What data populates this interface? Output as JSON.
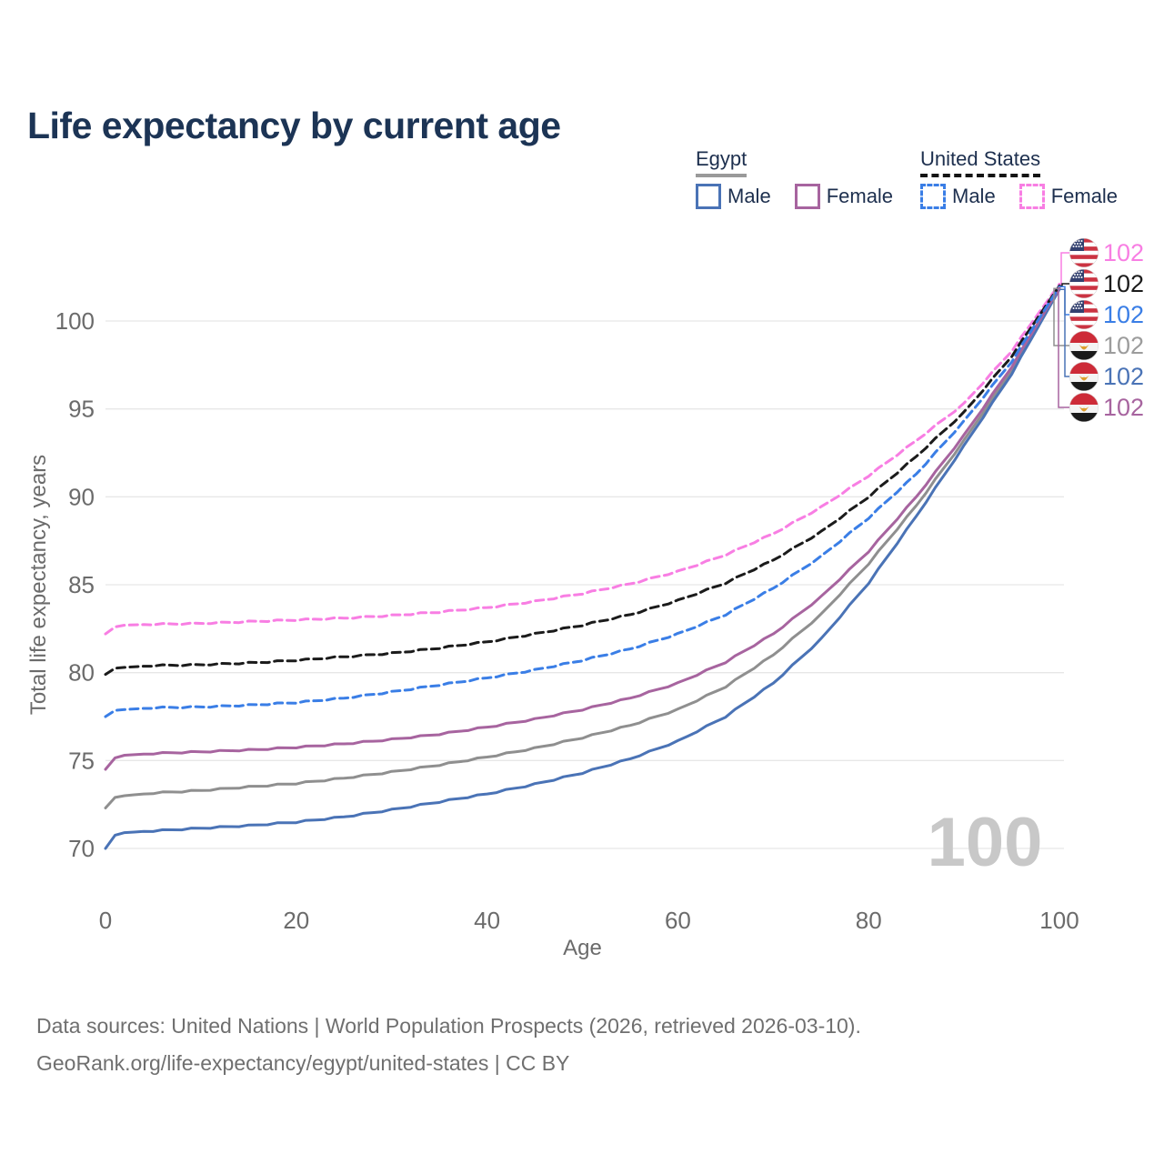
{
  "title": "Life expectancy by current age",
  "legend": {
    "groups": [
      {
        "label": "Egypt",
        "underline_style": "solid",
        "underline_color": "#9a9a9a",
        "items": [
          {
            "label": "Male",
            "style": "solid",
            "color": "#4a73b6"
          },
          {
            "label": "Female",
            "style": "solid",
            "color": "#a7649f"
          }
        ]
      },
      {
        "label": "United States",
        "underline_style": "dashed",
        "underline_color": "#141414",
        "items": [
          {
            "label": "Male",
            "style": "dashed",
            "color": "#3a7ee6"
          },
          {
            "label": "Female",
            "style": "dashed",
            "color": "#f87ee3"
          }
        ]
      }
    ]
  },
  "chart_data": {
    "type": "line",
    "xlabel": "Age",
    "ylabel": "Total life expectancy, years",
    "xlim": [
      0,
      100
    ],
    "ylim": [
      70,
      100
    ],
    "x_ticks": [
      0,
      20,
      40,
      60,
      80,
      100
    ],
    "y_ticks": [
      70,
      75,
      80,
      85,
      90,
      95,
      100
    ],
    "grid": "horizontal-only",
    "legend_position": "top-right",
    "watermark": "100",
    "x": [
      0,
      1,
      2,
      5,
      10,
      15,
      20,
      25,
      30,
      35,
      40,
      45,
      50,
      55,
      60,
      65,
      70,
      75,
      80,
      85,
      90,
      95,
      100
    ],
    "series": [
      {
        "id": "us_female",
        "name": "United States Female",
        "flag": "us",
        "color": "#f87ee3",
        "dash": true,
        "label_row": 0,
        "end_label": "102",
        "values": [
          82.2,
          82.6,
          82.7,
          82.75,
          82.8,
          82.9,
          83.0,
          83.1,
          83.25,
          83.45,
          83.7,
          84.05,
          84.5,
          85.05,
          85.75,
          86.7,
          87.9,
          89.4,
          91.2,
          93.2,
          95.3,
          98.3,
          102.1
        ]
      },
      {
        "id": "us_total",
        "name": "United States",
        "flag": "us",
        "color": "#1b1b1b",
        "dash": true,
        "label_row": 1,
        "end_label": "102",
        "values": [
          79.9,
          80.25,
          80.3,
          80.4,
          80.45,
          80.55,
          80.7,
          80.9,
          81.1,
          81.4,
          81.75,
          82.2,
          82.7,
          83.3,
          84.1,
          85.1,
          86.4,
          88.0,
          90.0,
          92.3,
          94.8,
          98.0,
          102.0
        ]
      },
      {
        "id": "us_male",
        "name": "United States Male",
        "flag": "us",
        "color": "#3a7ee6",
        "dash": true,
        "label_row": 2,
        "end_label": "102",
        "values": [
          77.5,
          77.85,
          77.9,
          78.0,
          78.05,
          78.15,
          78.3,
          78.55,
          78.9,
          79.3,
          79.7,
          80.15,
          80.7,
          81.35,
          82.2,
          83.3,
          84.8,
          86.6,
          88.8,
          91.3,
          94.3,
          97.7,
          101.95
        ]
      },
      {
        "id": "egypt_total",
        "name": "Egypt",
        "flag": "eg",
        "color": "#8f8f8f",
        "label_color": "#9c9c9c",
        "dash": false,
        "label_row": 3,
        "end_label": "102",
        "values": [
          72.3,
          72.9,
          73.0,
          73.15,
          73.3,
          73.5,
          73.7,
          74.0,
          74.35,
          74.75,
          75.2,
          75.7,
          76.3,
          77.0,
          77.9,
          79.2,
          81.0,
          83.3,
          86.2,
          89.5,
          93.2,
          97.2,
          101.85
        ]
      },
      {
        "id": "egypt_male",
        "name": "Egypt Male",
        "flag": "eg",
        "color": "#4a73b6",
        "dash": false,
        "label_row": 4,
        "end_label": "102",
        "values": [
          70.0,
          70.75,
          70.9,
          71.0,
          71.15,
          71.3,
          71.5,
          71.8,
          72.2,
          72.65,
          73.1,
          73.65,
          74.3,
          75.1,
          76.1,
          77.5,
          79.4,
          81.9,
          85.1,
          88.9,
          92.9,
          97.0,
          101.8
        ]
      },
      {
        "id": "egypt_female",
        "name": "Egypt Female",
        "flag": "eg",
        "color": "#a7649f",
        "dash": false,
        "label_row": 5,
        "end_label": "102",
        "values": [
          74.5,
          75.15,
          75.3,
          75.4,
          75.5,
          75.6,
          75.75,
          75.95,
          76.2,
          76.5,
          76.9,
          77.35,
          77.9,
          78.55,
          79.4,
          80.6,
          82.2,
          84.3,
          86.9,
          90.0,
          93.5,
          97.4,
          101.9
        ]
      }
    ]
  },
  "footer": {
    "line1": "Data sources: United Nations | World Population Prospects (2026, retrieved 2026-03-10).",
    "line2": "GeoRank.org/life-expectancy/egypt/united-states | CC BY"
  }
}
